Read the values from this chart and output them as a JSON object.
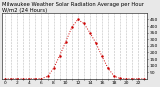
{
  "title": "Milwaukee Weather Solar Radiation Average per Hour W/m2 (24 Hours)",
  "hours": [
    0,
    1,
    2,
    3,
    4,
    5,
    6,
    7,
    8,
    9,
    10,
    11,
    12,
    13,
    14,
    15,
    16,
    17,
    18,
    19,
    20,
    21,
    22,
    23
  ],
  "solar": [
    0,
    0,
    0,
    0,
    0,
    0,
    2,
    18,
    80,
    175,
    280,
    390,
    450,
    420,
    350,
    270,
    170,
    80,
    20,
    3,
    0,
    0,
    0,
    0
  ],
  "line_color": "#cc0000",
  "bg_color": "#e8e8e8",
  "plot_bg": "#ffffff",
  "grid_color": "#aaaaaa",
  "ylim": [
    0,
    500
  ],
  "yticks": [
    50,
    100,
    150,
    200,
    250,
    300,
    350,
    400,
    450
  ],
  "ytick_labels": [
    "50",
    "100",
    "150",
    "200",
    "250",
    "300",
    "350",
    "400",
    "450"
  ],
  "title_fontsize": 3.8,
  "tick_fontsize": 3.2
}
